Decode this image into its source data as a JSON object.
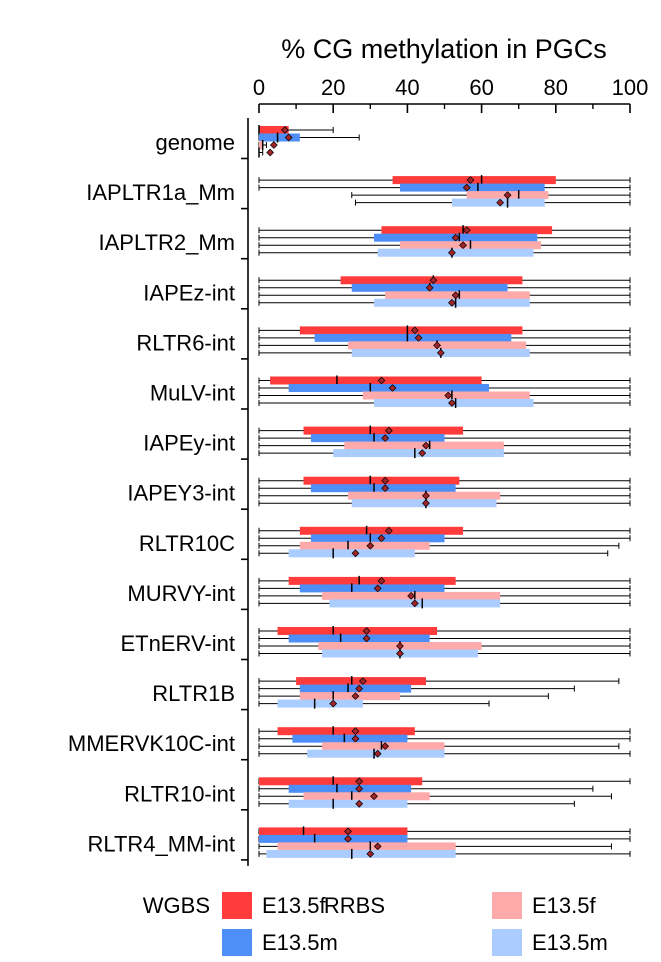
{
  "chart_data": {
    "type": "box",
    "title": "% CG methylation in PGCs",
    "xlim": [
      0,
      100
    ],
    "xticks": [
      "0",
      "20",
      "40",
      "60",
      "80",
      "100"
    ],
    "series": [
      {
        "name": "E13.5f",
        "assay": "WGBS",
        "color": "#ff3b3b"
      },
      {
        "name": "E13.5m",
        "assay": "WGBS",
        "color": "#4d8ef7"
      },
      {
        "name": "E13.5f",
        "assay": "RRBS",
        "color": "#ffaaaa"
      },
      {
        "name": "E13.5m",
        "assay": "RRBS",
        "color": "#aaccff"
      }
    ],
    "categories": [
      {
        "label": "genome",
        "stats": [
          {
            "wmin": 0,
            "q1": 0,
            "median": 0,
            "q3": 8,
            "wmax": 20,
            "mean": 7
          },
          {
            "wmin": 0,
            "q1": 0,
            "median": 5,
            "q3": 11,
            "wmax": 27,
            "mean": 8
          },
          {
            "wmin": 0,
            "q1": 0,
            "median": 1,
            "q3": 1,
            "wmax": 2,
            "mean": 4
          },
          {
            "wmin": 0,
            "q1": 0,
            "median": 0,
            "q3": 0,
            "wmax": 1,
            "mean": 3
          }
        ]
      },
      {
        "label": "IAPLTR1a_Mm",
        "stats": [
          {
            "wmin": 0,
            "q1": 36,
            "median": 60,
            "q3": 80,
            "wmax": 100,
            "mean": 57
          },
          {
            "wmin": 0,
            "q1": 38,
            "median": 59,
            "q3": 77,
            "wmax": 100,
            "mean": 56
          },
          {
            "wmin": 25,
            "q1": 56,
            "median": 70,
            "q3": 78,
            "wmax": 100,
            "mean": 67
          },
          {
            "wmin": 26,
            "q1": 52,
            "median": 67,
            "q3": 77,
            "wmax": 100,
            "mean": 65
          }
        ]
      },
      {
        "label": "IAPLTR2_Mm",
        "stats": [
          {
            "wmin": 0,
            "q1": 33,
            "median": 55,
            "q3": 79,
            "wmax": 100,
            "mean": 56
          },
          {
            "wmin": 0,
            "q1": 31,
            "median": 54,
            "q3": 75,
            "wmax": 100,
            "mean": 53
          },
          {
            "wmin": 0,
            "q1": 38,
            "median": 57,
            "q3": 76,
            "wmax": 100,
            "mean": 55
          },
          {
            "wmin": 0,
            "q1": 32,
            "median": 52,
            "q3": 74,
            "wmax": 100,
            "mean": 52
          }
        ]
      },
      {
        "label": "IAPEz-int",
        "stats": [
          {
            "wmin": 0,
            "q1": 22,
            "median": 47,
            "q3": 71,
            "wmax": 100,
            "mean": 47
          },
          {
            "wmin": 0,
            "q1": 25,
            "median": 46,
            "q3": 67,
            "wmax": 100,
            "mean": 46
          },
          {
            "wmin": 0,
            "q1": 34,
            "median": 54,
            "q3": 73,
            "wmax": 100,
            "mean": 53
          },
          {
            "wmin": 0,
            "q1": 31,
            "median": 53,
            "q3": 73,
            "wmax": 100,
            "mean": 52
          }
        ]
      },
      {
        "label": "RLTR6-int",
        "stats": [
          {
            "wmin": 0,
            "q1": 11,
            "median": 40,
            "q3": 71,
            "wmax": 100,
            "mean": 42
          },
          {
            "wmin": 0,
            "q1": 15,
            "median": 40,
            "q3": 68,
            "wmax": 100,
            "mean": 43
          },
          {
            "wmin": 0,
            "q1": 24,
            "median": 48,
            "q3": 72,
            "wmax": 100,
            "mean": 48
          },
          {
            "wmin": 0,
            "q1": 25,
            "median": 49,
            "q3": 73,
            "wmax": 100,
            "mean": 49
          }
        ]
      },
      {
        "label": "MuLV-int",
        "stats": [
          {
            "wmin": 0,
            "q1": 3,
            "median": 21,
            "q3": 60,
            "wmax": 100,
            "mean": 33
          },
          {
            "wmin": 0,
            "q1": 8,
            "median": 30,
            "q3": 62,
            "wmax": 100,
            "mean": 36
          },
          {
            "wmin": 0,
            "q1": 28,
            "median": 52,
            "q3": 73,
            "wmax": 100,
            "mean": 51
          },
          {
            "wmin": 0,
            "q1": 31,
            "median": 53,
            "q3": 74,
            "wmax": 100,
            "mean": 52
          }
        ]
      },
      {
        "label": "IAPEy-int",
        "stats": [
          {
            "wmin": 0,
            "q1": 12,
            "median": 30,
            "q3": 55,
            "wmax": 100,
            "mean": 35
          },
          {
            "wmin": 0,
            "q1": 14,
            "median": 31,
            "q3": 50,
            "wmax": 100,
            "mean": 34
          },
          {
            "wmin": 0,
            "q1": 23,
            "median": 46,
            "q3": 66,
            "wmax": 100,
            "mean": 45
          },
          {
            "wmin": 0,
            "q1": 20,
            "median": 42,
            "q3": 66,
            "wmax": 100,
            "mean": 44
          }
        ]
      },
      {
        "label": "IAPEY3-int",
        "stats": [
          {
            "wmin": 0,
            "q1": 12,
            "median": 30,
            "q3": 54,
            "wmax": 100,
            "mean": 34
          },
          {
            "wmin": 0,
            "q1": 14,
            "median": 31,
            "q3": 53,
            "wmax": 100,
            "mean": 34
          },
          {
            "wmin": 0,
            "q1": 24,
            "median": 45,
            "q3": 65,
            "wmax": 100,
            "mean": 45
          },
          {
            "wmin": 0,
            "q1": 25,
            "median": 45,
            "q3": 64,
            "wmax": 100,
            "mean": 45
          }
        ]
      },
      {
        "label": "RLTR10C",
        "stats": [
          {
            "wmin": 0,
            "q1": 11,
            "median": 29,
            "q3": 55,
            "wmax": 100,
            "mean": 35
          },
          {
            "wmin": 0,
            "q1": 14,
            "median": 30,
            "q3": 50,
            "wmax": 100,
            "mean": 33
          },
          {
            "wmin": 0,
            "q1": 11,
            "median": 24,
            "q3": 46,
            "wmax": 97,
            "mean": 30
          },
          {
            "wmin": 0,
            "q1": 8,
            "median": 20,
            "q3": 42,
            "wmax": 94,
            "mean": 26
          }
        ]
      },
      {
        "label": "MURVY-int",
        "stats": [
          {
            "wmin": 0,
            "q1": 8,
            "median": 27,
            "q3": 53,
            "wmax": 100,
            "mean": 33
          },
          {
            "wmin": 0,
            "q1": 11,
            "median": 25,
            "q3": 50,
            "wmax": 100,
            "mean": 32
          },
          {
            "wmin": 0,
            "q1": 17,
            "median": 42,
            "q3": 65,
            "wmax": 100,
            "mean": 41
          },
          {
            "wmin": 0,
            "q1": 19,
            "median": 44,
            "q3": 65,
            "wmax": 100,
            "mean": 42
          }
        ]
      },
      {
        "label": "ETnERV-int",
        "stats": [
          {
            "wmin": 0,
            "q1": 5,
            "median": 20,
            "q3": 48,
            "wmax": 100,
            "mean": 29
          },
          {
            "wmin": 0,
            "q1": 8,
            "median": 22,
            "q3": 46,
            "wmax": 100,
            "mean": 29
          },
          {
            "wmin": 0,
            "q1": 16,
            "median": 38,
            "q3": 60,
            "wmax": 100,
            "mean": 38
          },
          {
            "wmin": 0,
            "q1": 17,
            "median": 38,
            "q3": 59,
            "wmax": 100,
            "mean": 38
          }
        ]
      },
      {
        "label": "RLTR1B",
        "stats": [
          {
            "wmin": 0,
            "q1": 10,
            "median": 25,
            "q3": 45,
            "wmax": 97,
            "mean": 28
          },
          {
            "wmin": 0,
            "q1": 11,
            "median": 24,
            "q3": 41,
            "wmax": 85,
            "mean": 27
          },
          {
            "wmin": 0,
            "q1": 11,
            "median": 20,
            "q3": 38,
            "wmax": 78,
            "mean": 26
          },
          {
            "wmin": 0,
            "q1": 5,
            "median": 15,
            "q3": 28,
            "wmax": 62,
            "mean": 20
          }
        ]
      },
      {
        "label": "MMERVK10C-int",
        "stats": [
          {
            "wmin": 0,
            "q1": 5,
            "median": 20,
            "q3": 42,
            "wmax": 100,
            "mean": 26
          },
          {
            "wmin": 0,
            "q1": 9,
            "median": 23,
            "q3": 40,
            "wmax": 100,
            "mean": 26
          },
          {
            "wmin": 0,
            "q1": 17,
            "median": 33,
            "q3": 50,
            "wmax": 97,
            "mean": 34
          },
          {
            "wmin": 0,
            "q1": 13,
            "median": 31,
            "q3": 50,
            "wmax": 100,
            "mean": 32
          }
        ]
      },
      {
        "label": "RLTR10-int",
        "stats": [
          {
            "wmin": 0,
            "q1": 0,
            "median": 20,
            "q3": 44,
            "wmax": 100,
            "mean": 27
          },
          {
            "wmin": 0,
            "q1": 8,
            "median": 21,
            "q3": 41,
            "wmax": 90,
            "mean": 27
          },
          {
            "wmin": 0,
            "q1": 12,
            "median": 25,
            "q3": 46,
            "wmax": 95,
            "mean": 31
          },
          {
            "wmin": 0,
            "q1": 8,
            "median": 20,
            "q3": 40,
            "wmax": 85,
            "mean": 27
          }
        ]
      },
      {
        "label": "RLTR4_MM-int",
        "stats": [
          {
            "wmin": 0,
            "q1": 0,
            "median": 12,
            "q3": 40,
            "wmax": 100,
            "mean": 24
          },
          {
            "wmin": 0,
            "q1": 0,
            "median": 15,
            "q3": 40,
            "wmax": 100,
            "mean": 24
          },
          {
            "wmin": 0,
            "q1": 5,
            "median": 30,
            "q3": 53,
            "wmax": 95,
            "mean": 32
          },
          {
            "wmin": 0,
            "q1": 2,
            "median": 25,
            "q3": 53,
            "wmax": 100,
            "mean": 30
          }
        ]
      }
    ],
    "legend": {
      "groups": [
        {
          "label": "WGBS",
          "entries": [
            "E13.5f",
            "E13.5m"
          ]
        },
        {
          "label": "RRBS",
          "entries": [
            "E13.5f",
            "E13.5m"
          ]
        }
      ],
      "placement": "bottom"
    },
    "mean_marker": {
      "shape": "diamond",
      "color": "#a0252a"
    }
  }
}
